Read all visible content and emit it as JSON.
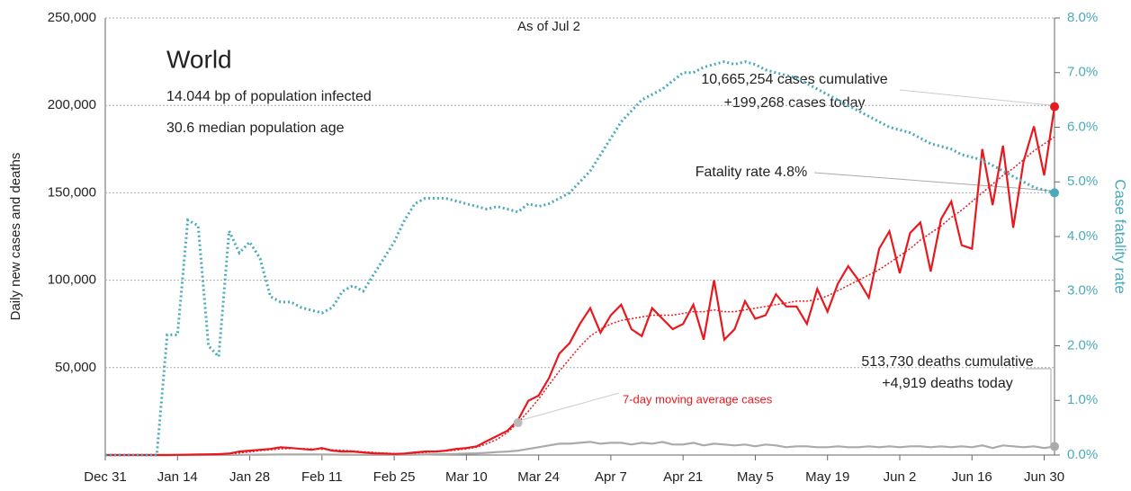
{
  "chart_data": {
    "type": "line",
    "annotations": {
      "as_of": "As of Jul 2",
      "region": "World",
      "infected": "14.044 bp of population infected",
      "age": "30.6 median population age",
      "cases_cum": "10,665,254 cases cumulative",
      "cases_today": "+199,268 cases today",
      "fatality": "Fatality rate 4.8%",
      "deaths_cum": "513,730 deaths cumulative",
      "deaths_today": "+4,919 deaths today",
      "moving_average": "7-day moving average cases"
    },
    "ylabel": "Daily new cases and deaths",
    "y2label": "Case fatality rate",
    "xlim": [
      0,
      184
    ],
    "xticks": [
      {
        "value": 0,
        "label": "Dec 31"
      },
      {
        "value": 14,
        "label": "Jan 14"
      },
      {
        "value": 28,
        "label": "Jan 28"
      },
      {
        "value": 42,
        "label": "Feb 11"
      },
      {
        "value": 56,
        "label": "Feb 25"
      },
      {
        "value": 70,
        "label": "Mar 10"
      },
      {
        "value": 84,
        "label": "Mar 24"
      },
      {
        "value": 98,
        "label": "Apr 7"
      },
      {
        "value": 112,
        "label": "Apr 21"
      },
      {
        "value": 126,
        "label": "May 5"
      },
      {
        "value": 140,
        "label": "May 19"
      },
      {
        "value": 154,
        "label": "Jun 2"
      },
      {
        "value": 168,
        "label": "Jun 16"
      },
      {
        "value": 182,
        "label": "Jun 30"
      }
    ],
    "ylim": [
      0,
      250000
    ],
    "yticks": [
      {
        "value": 50000,
        "label": "50,000"
      },
      {
        "value": 100000,
        "label": "100,000"
      },
      {
        "value": 150000,
        "label": "150,000"
      },
      {
        "value": 200000,
        "label": "200,000"
      },
      {
        "value": 250000,
        "label": "250,000"
      }
    ],
    "y2lim": [
      0,
      8
    ],
    "y2ticks": [
      {
        "value": 0,
        "label": "0.0%"
      },
      {
        "value": 1,
        "label": "1.0%"
      },
      {
        "value": 2,
        "label": "2.0%"
      },
      {
        "value": 3,
        "label": "3.0%"
      },
      {
        "value": 4,
        "label": "4.0%"
      },
      {
        "value": 5,
        "label": "5.0%"
      },
      {
        "value": 6,
        "label": "6.0%"
      },
      {
        "value": 7,
        "label": "7.0%"
      },
      {
        "value": 8,
        "label": "8.0%"
      }
    ],
    "grid": true,
    "x": [
      0,
      2,
      4,
      6,
      8,
      10,
      12,
      14,
      16,
      18,
      20,
      22,
      24,
      26,
      28,
      30,
      32,
      34,
      36,
      38,
      40,
      42,
      44,
      46,
      48,
      50,
      52,
      54,
      56,
      58,
      60,
      62,
      64,
      66,
      68,
      70,
      72,
      74,
      76,
      78,
      80,
      82,
      84,
      86,
      88,
      90,
      92,
      94,
      96,
      98,
      100,
      102,
      104,
      106,
      108,
      110,
      112,
      114,
      116,
      118,
      120,
      122,
      124,
      126,
      128,
      130,
      132,
      134,
      136,
      138,
      140,
      142,
      144,
      146,
      148,
      150,
      152,
      154,
      156,
      158,
      160,
      162,
      164,
      166,
      168,
      170,
      172,
      174,
      176,
      178,
      180,
      182,
      184
    ],
    "series": [
      {
        "color": "#aaaaaa",
        "style": "solid",
        "values": [
          0,
          0,
          0,
          0,
          0,
          0,
          0,
          0,
          0,
          0,
          0,
          0,
          50,
          100,
          150,
          200,
          250,
          300,
          300,
          300,
          300,
          300,
          250,
          200,
          150,
          100,
          100,
          100,
          100,
          150,
          200,
          300,
          400,
          500,
          600,
          800,
          1000,
          1300,
          1700,
          2000,
          2500,
          3500,
          4500,
          5500,
          6500,
          6500,
          7000,
          7500,
          6500,
          7000,
          7000,
          6000,
          7000,
          6500,
          7500,
          6000,
          6000,
          7000,
          5500,
          6500,
          6000,
          5500,
          6000,
          5000,
          6000,
          5500,
          4500,
          5000,
          5000,
          4500,
          4500,
          5000,
          4500,
          4500,
          5000,
          4500,
          5000,
          4500,
          5000,
          5000,
          4500,
          5000,
          4500,
          5000,
          4500,
          5500,
          4000,
          5500,
          5000,
          4500,
          5000,
          4000,
          4919
        ]
      },
      {
        "color": "#e8191e",
        "style": "dotted",
        "values": [
          0,
          0,
          0,
          0,
          0,
          0,
          0,
          100,
          150,
          200,
          300,
          400,
          700,
          1200,
          1800,
          2500,
          3000,
          3500,
          3700,
          3700,
          3500,
          3300,
          3000,
          2700,
          2300,
          1900,
          1500,
          1100,
          900,
          900,
          1100,
          1500,
          1800,
          2200,
          2800,
          3500,
          4500,
          6500,
          9000,
          13000,
          18500,
          25000,
          32000,
          40000,
          48000,
          55000,
          62000,
          68000,
          72000,
          75000,
          77000,
          78000,
          79000,
          80000,
          80000,
          80000,
          81000,
          82000,
          82000,
          83000,
          82000,
          82000,
          83000,
          84000,
          85000,
          86000,
          87000,
          88000,
          88000,
          89000,
          91000,
          94000,
          97000,
          100000,
          103000,
          106000,
          110000,
          114000,
          118000,
          123000,
          127000,
          131000,
          136000,
          140000,
          145000,
          150000,
          155000,
          160000,
          164000,
          169000,
          174000,
          178000,
          182000
        ]
      },
      {
        "color": "#e8191e",
        "style": "solid",
        "values": [
          0,
          0,
          0,
          0,
          0,
          0,
          0,
          100,
          200,
          300,
          400,
          500,
          800,
          2000,
          2500,
          3000,
          3500,
          4500,
          4000,
          3500,
          3000,
          4000,
          2500,
          2000,
          2000,
          1500,
          1000,
          800,
          600,
          800,
          1500,
          2000,
          2000,
          2500,
          3500,
          4000,
          5000,
          8000,
          11000,
          14000,
          20000,
          31000,
          34000,
          44000,
          58000,
          64000,
          75000,
          84000,
          70000,
          80000,
          86000,
          72000,
          68000,
          84000,
          78000,
          72000,
          75000,
          86000,
          66000,
          100000,
          66000,
          72000,
          88000,
          78000,
          80000,
          92000,
          85000,
          85000,
          75000,
          95000,
          82000,
          98000,
          108000,
          100000,
          90000,
          118000,
          128000,
          104000,
          127000,
          133000,
          105000,
          135000,
          145000,
          120000,
          118000,
          175000,
          143000,
          177000,
          130000,
          168000,
          188000,
          160000,
          199268
        ]
      },
      {
        "color": "#4aaabb",
        "style": "dotted",
        "axis": "y2",
        "values": [
          0,
          0,
          0,
          0,
          0,
          0,
          2.2,
          2.2,
          4.3,
          4.2,
          2.0,
          1.8,
          4.1,
          3.7,
          3.9,
          3.6,
          2.9,
          2.8,
          2.8,
          2.7,
          2.65,
          2.6,
          2.7,
          3.0,
          3.1,
          3.0,
          3.3,
          3.6,
          3.9,
          4.3,
          4.6,
          4.7,
          4.7,
          4.7,
          4.65,
          4.6,
          4.55,
          4.5,
          4.55,
          4.5,
          4.45,
          4.6,
          4.55,
          4.6,
          4.7,
          4.8,
          5.0,
          5.2,
          5.5,
          5.8,
          6.1,
          6.3,
          6.5,
          6.6,
          6.7,
          6.85,
          7.0,
          7.0,
          7.1,
          7.15,
          7.2,
          7.15,
          7.2,
          7.15,
          7.05,
          7.0,
          6.95,
          6.9,
          6.8,
          6.7,
          6.6,
          6.5,
          6.4,
          6.3,
          6.2,
          6.1,
          6.0,
          5.95,
          5.9,
          5.8,
          5.7,
          5.65,
          5.6,
          5.5,
          5.45,
          5.4,
          5.3,
          5.2,
          5.1,
          5.0,
          4.9,
          4.85,
          4.8
        ]
      }
    ]
  }
}
